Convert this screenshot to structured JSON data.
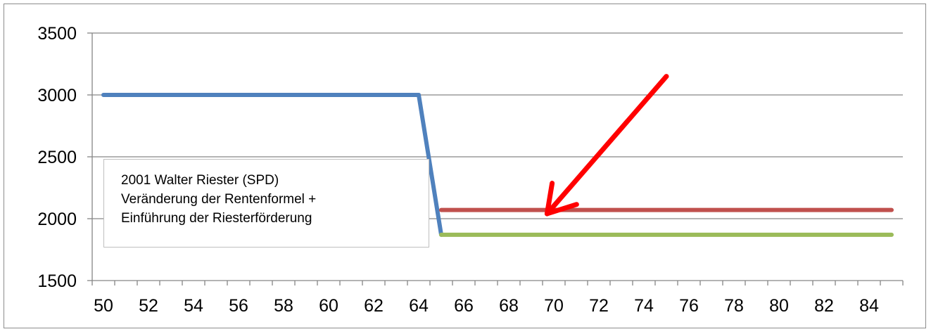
{
  "chart_data": {
    "type": "line",
    "x": [
      50,
      51,
      52,
      53,
      54,
      55,
      56,
      57,
      58,
      59,
      60,
      61,
      62,
      63,
      64,
      65,
      66,
      67,
      68,
      69,
      70,
      71,
      72,
      73,
      74,
      75,
      76,
      77,
      78,
      79,
      80,
      81,
      82,
      83,
      84,
      85
    ],
    "xticks": [
      50,
      52,
      54,
      56,
      58,
      60,
      62,
      64,
      66,
      68,
      70,
      72,
      74,
      76,
      78,
      80,
      82,
      84
    ],
    "yticks": [
      1500,
      2000,
      2500,
      3000,
      3500
    ],
    "xlim": [
      49.5,
      85.5
    ],
    "ylim": [
      1500,
      3500
    ],
    "grid": "horizontal",
    "legend": "none",
    "series": [
      {
        "color": "#4f81bd",
        "points": [
          [
            50,
            3000
          ],
          [
            64,
            3000
          ],
          [
            65,
            1870
          ]
        ]
      },
      {
        "color": "#c0504d",
        "points": [
          [
            65,
            2070
          ],
          [
            85,
            2070
          ]
        ]
      },
      {
        "color": "#9bbb59",
        "points": [
          [
            65,
            1870
          ],
          [
            85,
            1870
          ]
        ]
      }
    ],
    "annotation": {
      "lines": [
        "2001 Walter Riester  (SPD)",
        "Veränderung der Rentenformel +",
        "Einführung der Riesterförderung"
      ]
    },
    "arrow": {
      "color": "#ff0000",
      "from": [
        75,
        3150
      ],
      "to": [
        69.7,
        2040
      ]
    }
  }
}
